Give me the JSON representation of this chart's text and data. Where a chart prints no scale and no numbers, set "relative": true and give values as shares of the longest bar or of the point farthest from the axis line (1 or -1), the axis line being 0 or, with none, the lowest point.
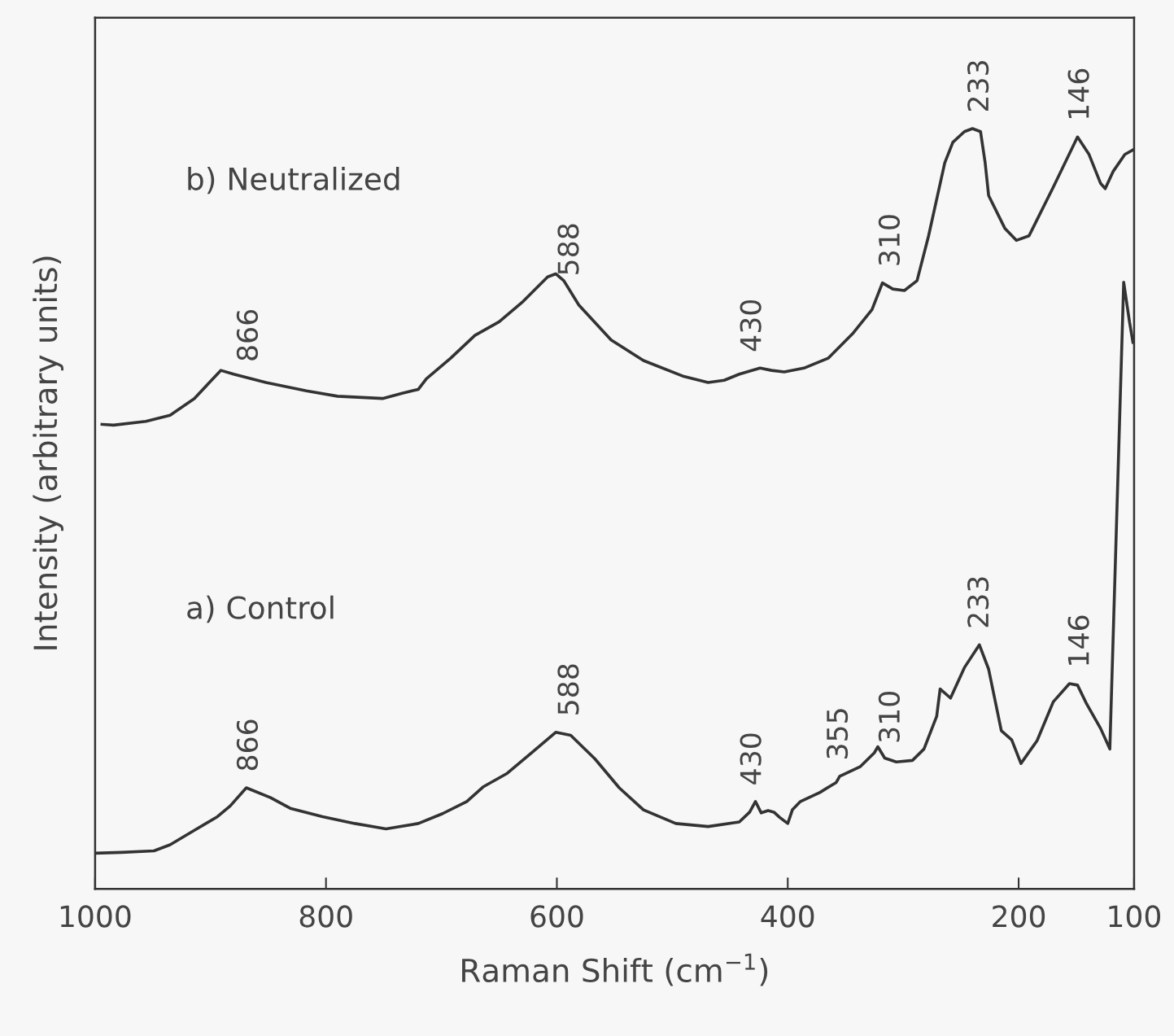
{
  "chart_data": {
    "type": "line",
    "relative": true,
    "xlabel": "Raman Shift (cm$^{−1}$)",
    "ylabel": "Intensity (arbitrary units)",
    "xlim": [
      1000,
      100
    ],
    "xticks": [
      1000,
      800,
      600,
      400,
      200,
      100
    ],
    "series": [
      {
        "color": "#333333",
        "x": [
          994,
          984,
          956,
          935,
          914,
          901,
          891,
          880,
          852,
          817,
          790,
          751,
          734,
          720,
          713,
          692,
          671,
          650,
          629,
          608,
          601,
          594,
          581,
          553,
          525,
          490,
          469,
          455,
          442,
          424,
          414,
          403,
          386,
          365,
          344,
          327,
          318,
          309,
          299,
          288,
          278,
          264,
          257,
          247,
          240,
          233,
          229,
          226,
          212,
          202,
          191,
          170,
          149,
          139,
          129,
          125,
          118,
          108,
          101
        ],
        "values": [
          0.611,
          0.61,
          0.615,
          0.623,
          0.645,
          0.666,
          0.682,
          0.677,
          0.666,
          0.655,
          0.648,
          0.645,
          0.652,
          0.657,
          0.671,
          0.698,
          0.728,
          0.746,
          0.773,
          0.805,
          0.809,
          0.8,
          0.768,
          0.722,
          0.695,
          0.674,
          0.666,
          0.669,
          0.677,
          0.685,
          0.682,
          0.68,
          0.685,
          0.698,
          0.73,
          0.762,
          0.797,
          0.789,
          0.787,
          0.8,
          0.859,
          0.955,
          0.982,
          0.996,
          1.0,
          0.996,
          0.955,
          0.912,
          0.869,
          0.853,
          0.859,
          0.923,
          0.989,
          0.966,
          0.928,
          0.921,
          0.944,
          0.966,
          0.972
        ]
      },
      {
        "color": "#333333",
        "x": [
          1000,
          977,
          949,
          935,
          914,
          894,
          883,
          869,
          848,
          831,
          803,
          775,
          748,
          720,
          699,
          678,
          664,
          643,
          622,
          601,
          588,
          567,
          546,
          525,
          497,
          469,
          442,
          433,
          428,
          423,
          417,
          412,
          407,
          400,
          396,
          389,
          372,
          358,
          355,
          337,
          325,
          322,
          316,
          306,
          292,
          282,
          271,
          268,
          259,
          247,
          234,
          226,
          215,
          206,
          198,
          184,
          170,
          156,
          149,
          141,
          129,
          121,
          109,
          104,
          101
        ],
        "values": [
          0.047,
          0.048,
          0.05,
          0.058,
          0.077,
          0.095,
          0.109,
          0.133,
          0.12,
          0.106,
          0.095,
          0.086,
          0.079,
          0.086,
          0.099,
          0.115,
          0.134,
          0.152,
          0.179,
          0.206,
          0.202,
          0.171,
          0.133,
          0.104,
          0.086,
          0.082,
          0.088,
          0.101,
          0.115,
          0.1,
          0.103,
          0.101,
          0.094,
          0.086,
          0.104,
          0.115,
          0.127,
          0.14,
          0.148,
          0.161,
          0.179,
          0.187,
          0.172,
          0.167,
          0.169,
          0.184,
          0.227,
          0.263,
          0.251,
          0.291,
          0.321,
          0.289,
          0.208,
          0.196,
          0.165,
          0.195,
          0.246,
          0.27,
          0.268,
          0.243,
          0.211,
          0.184,
          0.798,
          0.746,
          0.719
        ]
      }
    ],
    "annotations": [
      "b) Neutralized",
      "a) Control",
      {
        "text": "866",
        "x": 866,
        "y": 0.672
      },
      {
        "text": "588",
        "x": 588,
        "y": 0.785
      },
      {
        "text": "430",
        "x": 430,
        "y": 0.685
      },
      {
        "text": "310",
        "x": 310,
        "y": 0.797
      },
      {
        "text": "233",
        "x": 233,
        "y": 1.0
      },
      {
        "text": "146",
        "x": 146,
        "y": 0.989
      },
      {
        "text": "866",
        "x": 866,
        "y": 0.133
      },
      {
        "text": "588",
        "x": 588,
        "y": 0.206
      },
      {
        "text": "430",
        "x": 430,
        "y": 0.115
      },
      {
        "text": "355",
        "x": 355,
        "y": 0.148
      },
      {
        "text": "310",
        "x": 310,
        "y": 0.17
      },
      {
        "text": "233",
        "x": 233,
        "y": 0.321
      },
      {
        "text": "146",
        "x": 146,
        "y": 0.27
      }
    ]
  }
}
